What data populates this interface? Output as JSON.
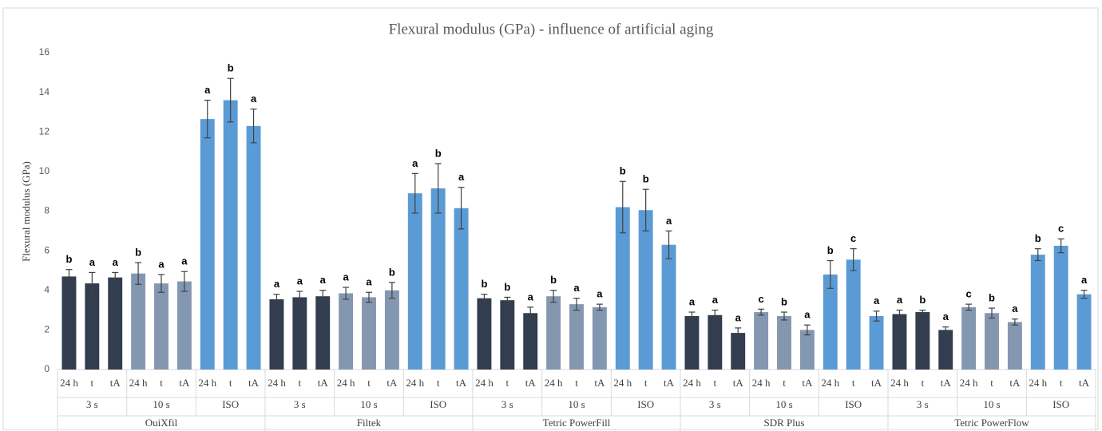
{
  "chart_data": {
    "type": "bar",
    "title": "Flexural modulus (GPa) - influence of artificial aging",
    "y_label": "Flexural modulus (GPa)",
    "ylim": [
      0,
      16
    ],
    "yticks": [
      0,
      2,
      4,
      6,
      8,
      10,
      12,
      14,
      16
    ],
    "categories": [
      "24 h",
      "t",
      "tA"
    ],
    "groups": [
      {
        "name": "OuiXfil",
        "subgroups": [
          {
            "name": "3 s",
            "color": "#323e4f",
            "values": [
              4.7,
              4.35,
              4.65
            ],
            "errors": [
              0.35,
              0.55,
              0.25
            ],
            "letters": [
              "b",
              "a",
              "a"
            ]
          },
          {
            "name": "10 s",
            "color": "#8497b0",
            "values": [
              4.85,
              4.35,
              4.45
            ],
            "errors": [
              0.55,
              0.45,
              0.5
            ],
            "letters": [
              "b",
              "a",
              "a"
            ]
          },
          {
            "name": "ISO",
            "color": "#5b9bd5",
            "values": [
              12.65,
              13.6,
              12.3
            ],
            "errors": [
              0.95,
              1.1,
              0.85
            ],
            "letters": [
              "a",
              "b",
              "a"
            ]
          }
        ]
      },
      {
        "name": "Filtek",
        "subgroups": [
          {
            "name": "3 s",
            "color": "#323e4f",
            "values": [
              3.55,
              3.65,
              3.7
            ],
            "errors": [
              0.25,
              0.3,
              0.3
            ],
            "letters": [
              "a",
              "a",
              "a"
            ]
          },
          {
            "name": "10 s",
            "color": "#8497b0",
            "values": [
              3.85,
              3.65,
              4.0
            ],
            "errors": [
              0.3,
              0.25,
              0.4
            ],
            "letters": [
              "a",
              "a",
              "b"
            ]
          },
          {
            "name": "ISO",
            "color": "#5b9bd5",
            "values": [
              8.9,
              9.15,
              8.15
            ],
            "errors": [
              1.0,
              1.25,
              1.05
            ],
            "letters": [
              "a",
              "b",
              "a"
            ]
          }
        ]
      },
      {
        "name": "Tetric PowerFill",
        "subgroups": [
          {
            "name": "3 s",
            "color": "#323e4f",
            "values": [
              3.6,
              3.5,
              2.85
            ],
            "errors": [
              0.2,
              0.15,
              0.3
            ],
            "letters": [
              "b",
              "b",
              "a"
            ]
          },
          {
            "name": "10 s",
            "color": "#8497b0",
            "values": [
              3.7,
              3.3,
              3.15
            ],
            "errors": [
              0.3,
              0.3,
              0.15
            ],
            "letters": [
              "b",
              "a",
              "a"
            ]
          },
          {
            "name": "ISO",
            "color": "#5b9bd5",
            "values": [
              8.2,
              8.05,
              6.3
            ],
            "errors": [
              1.3,
              1.05,
              0.7
            ],
            "letters": [
              "b",
              "b",
              "a"
            ]
          }
        ]
      },
      {
        "name": "SDR Plus",
        "subgroups": [
          {
            "name": "3 s",
            "color": "#323e4f",
            "values": [
              2.7,
              2.75,
              1.85
            ],
            "errors": [
              0.2,
              0.25,
              0.25
            ],
            "letters": [
              "a",
              "a",
              "a"
            ]
          },
          {
            "name": "10 s",
            "color": "#8497b0",
            "values": [
              2.9,
              2.7,
              2.0
            ],
            "errors": [
              0.15,
              0.2,
              0.25
            ],
            "letters": [
              "c",
              "b",
              "a"
            ]
          },
          {
            "name": "ISO",
            "color": "#5b9bd5",
            "values": [
              4.8,
              5.55,
              2.7
            ],
            "errors": [
              0.7,
              0.55,
              0.25
            ],
            "letters": [
              "b",
              "c",
              "a"
            ]
          }
        ]
      },
      {
        "name": "Tetric PowerFlow",
        "subgroups": [
          {
            "name": "3 s",
            "color": "#323e4f",
            "values": [
              2.8,
              2.9,
              2.0
            ],
            "errors": [
              0.2,
              0.1,
              0.15
            ],
            "letters": [
              "a",
              "b",
              "a"
            ]
          },
          {
            "name": "10 s",
            "color": "#8497b0",
            "values": [
              3.15,
              2.85,
              2.4
            ],
            "errors": [
              0.15,
              0.25,
              0.15
            ],
            "letters": [
              "c",
              "b",
              "a"
            ]
          },
          {
            "name": "ISO",
            "color": "#5b9bd5",
            "values": [
              5.8,
              6.25,
              3.8
            ],
            "errors": [
              0.3,
              0.35,
              0.2
            ],
            "letters": [
              "b",
              "c",
              "a"
            ]
          }
        ]
      }
    ],
    "grid": false
  }
}
